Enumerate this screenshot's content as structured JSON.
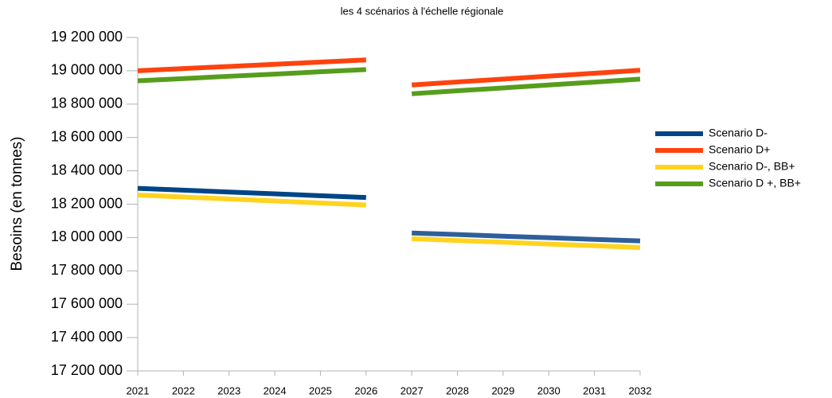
{
  "chart_data": {
    "type": "line",
    "title": "les 4 scénarios à l'échelle régionale",
    "y_label": "Besoins (en tonnes)",
    "categories": [
      "2021",
      "2022",
      "2023",
      "2024",
      "2025",
      "2026",
      "2027",
      "2028",
      "2029",
      "2030",
      "2031",
      "2032"
    ],
    "series": [
      {
        "name": "Scenario D-",
        "color": "#004586",
        "values": [
          18295000,
          18284000,
          18273000,
          18262000,
          18251000,
          18240000,
          null,
          null,
          null,
          null,
          null,
          null
        ]
      },
      {
        "name": "Scenario D+",
        "color": "#ff420e",
        "values": [
          19000000,
          19013000,
          19026000,
          19039000,
          19052000,
          19065000,
          null,
          null,
          null,
          null,
          null,
          null
        ]
      },
      {
        "name": "Scenario D-, BB+",
        "color": "#ffd320",
        "values": [
          18255000,
          18243000,
          18231000,
          18219000,
          18207000,
          18195000,
          null,
          null,
          null,
          null,
          null,
          null
        ]
      },
      {
        "name": "Scenario D +, BB+",
        "color": "#579d1c",
        "values": [
          18940000,
          18953000,
          18967000,
          18980000,
          18994000,
          19007000,
          null,
          null,
          null,
          null,
          null,
          null
        ]
      },
      {
        "color": "#2f5f99",
        "values": [
          null,
          null,
          null,
          null,
          null,
          null,
          18027000,
          18018000,
          18008000,
          17999000,
          17989000,
          17980000
        ]
      },
      {
        "color": "#ff420e",
        "values": [
          null,
          null,
          null,
          null,
          null,
          null,
          18915000,
          18933000,
          18950000,
          18968000,
          18985000,
          19003000
        ]
      },
      {
        "color": "#ffd320",
        "values": [
          null,
          null,
          null,
          null,
          null,
          null,
          17993000,
          17982000,
          17972000,
          17961000,
          17951000,
          17940000
        ]
      },
      {
        "color": "#579d1c",
        "values": [
          null,
          null,
          null,
          null,
          null,
          null,
          18862000,
          18880000,
          18897000,
          18915000,
          18932000,
          18950000
        ]
      }
    ],
    "ylim": [
      17200000,
      19200000
    ],
    "yticks": [
      {
        "value": 17200000,
        "label": "17 200 000"
      },
      {
        "value": 17400000,
        "label": "17 400 000"
      },
      {
        "value": 17600000,
        "label": "17 600 000"
      },
      {
        "value": 17800000,
        "label": "17 800 000"
      },
      {
        "value": 18000000,
        "label": "18 000 000"
      },
      {
        "value": 18200000,
        "label": "18 200 000"
      },
      {
        "value": 18400000,
        "label": "18 400 000"
      },
      {
        "value": 18600000,
        "label": "18 600 000"
      },
      {
        "value": 18800000,
        "label": "18 800 000"
      },
      {
        "value": 19000000,
        "label": "19 000 000"
      },
      {
        "value": 19200000,
        "label": "19 200 000"
      }
    ],
    "grid": false,
    "legend": "right"
  }
}
